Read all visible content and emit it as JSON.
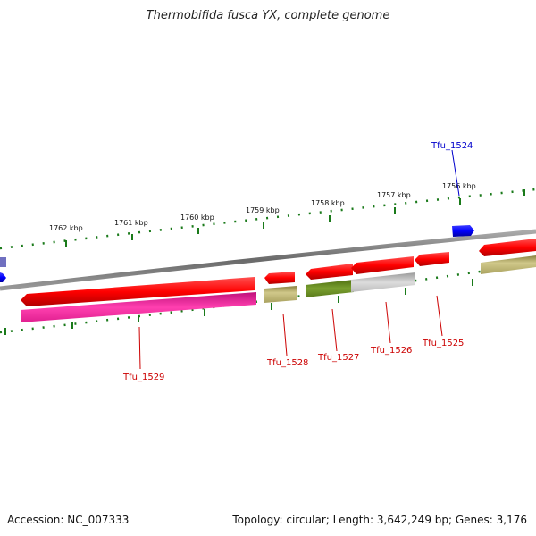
{
  "title": "Thermobifida fusca YX, complete genome",
  "footer": {
    "accession": "Accession: NC_007333",
    "topology": "Topology: circular; Length: 3,642,249 bp; Genes: 3,176"
  },
  "ruler": {
    "ticks": [
      "1762 kbp",
      "1761 kbp",
      "1760 kbp",
      "1759 kbp",
      "1758 kbp",
      "1757 kbp",
      "1756 kbp"
    ]
  },
  "genes": {
    "forward": [
      {
        "label": "Tfu_1524",
        "color": "#0000cc"
      }
    ],
    "reverse": [
      {
        "label": "Tfu_1529",
        "color": "#cc0000"
      },
      {
        "label": "Tfu_1528",
        "color": "#cc0000"
      },
      {
        "label": "Tfu_1527",
        "color": "#cc0000"
      },
      {
        "label": "Tfu_1526",
        "color": "#cc0000"
      },
      {
        "label": "Tfu_1525",
        "color": "#cc0000"
      }
    ]
  },
  "colors": {
    "cds_reverse": "#ff0000",
    "cds_forward": "#0000ff",
    "backbone": "#888888",
    "ruler": "#1a7a1a",
    "feature_magenta": "#e0208f",
    "feature_olive": "#b0a860",
    "feature_green": "#6b8e23",
    "feature_grey": "#bbbbbb"
  }
}
